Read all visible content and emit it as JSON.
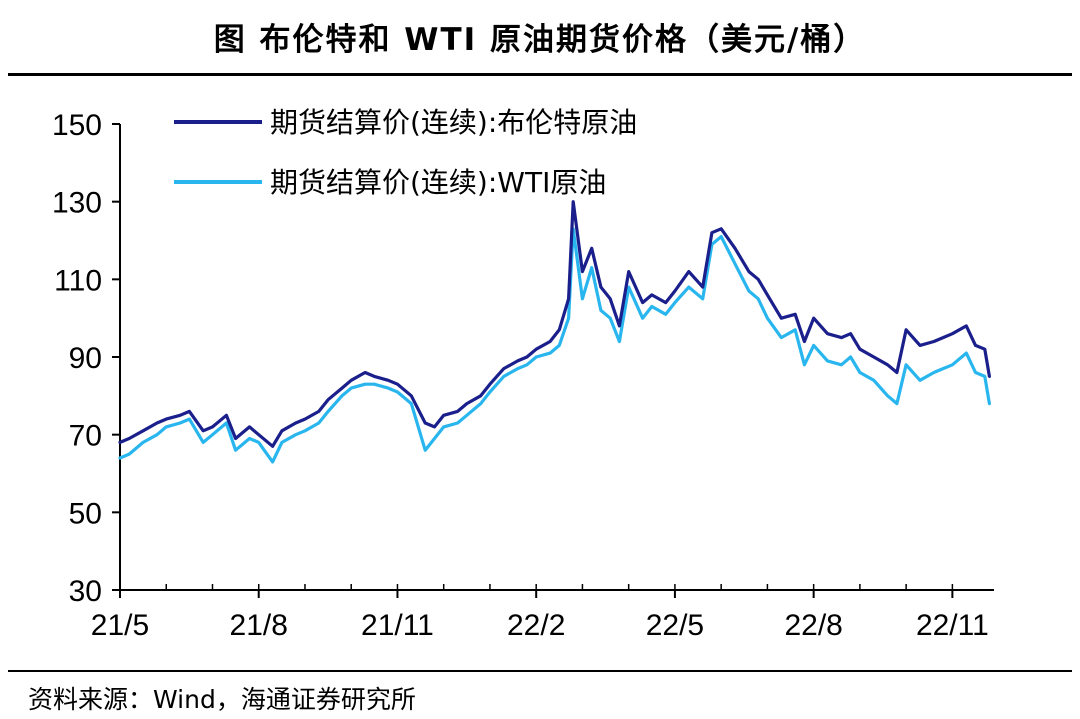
{
  "title": "图  布伦特和 WTI 原油期货价格（美元/桶）",
  "source": "资料来源：Wind，海通证券研究所",
  "chart_data": {
    "type": "line",
    "ylim": [
      30,
      150
    ],
    "yticks": [
      "150",
      "130",
      "110",
      "90",
      "70",
      "50",
      "30"
    ],
    "ytick_values": [
      150,
      130,
      110,
      90,
      70,
      50,
      30
    ],
    "xticks": [
      "21/5",
      "21/8",
      "21/11",
      "22/2",
      "22/5",
      "22/8",
      "22/11"
    ],
    "xtick_positions": [
      0,
      3,
      6,
      9,
      12,
      15,
      18
    ],
    "x_range": [
      0,
      18.9
    ],
    "legend_position": "top-left",
    "series": [
      {
        "name": "期货结算价(连续):布伦特原油",
        "color": "#1a1f8c",
        "x": [
          0,
          0.2,
          0.5,
          0.8,
          1.0,
          1.3,
          1.5,
          1.8,
          2.0,
          2.3,
          2.5,
          2.8,
          3.0,
          3.3,
          3.5,
          3.8,
          4.0,
          4.3,
          4.5,
          4.8,
          5.0,
          5.3,
          5.5,
          5.8,
          6.0,
          6.3,
          6.6,
          6.8,
          7.0,
          7.3,
          7.5,
          7.8,
          8.0,
          8.3,
          8.6,
          8.8,
          9.0,
          9.3,
          9.5,
          9.7,
          9.8,
          10.0,
          10.2,
          10.4,
          10.6,
          10.8,
          11.0,
          11.3,
          11.5,
          11.8,
          12.0,
          12.3,
          12.6,
          12.8,
          13.0,
          13.3,
          13.6,
          13.8,
          14.0,
          14.3,
          14.6,
          14.8,
          15.0,
          15.3,
          15.6,
          15.8,
          16.0,
          16.3,
          16.6,
          16.8,
          17.0,
          17.3,
          17.6,
          17.8,
          18.0,
          18.3,
          18.5,
          18.7,
          18.8
        ],
        "values": [
          68,
          69,
          71,
          73,
          74,
          75,
          76,
          71,
          72,
          75,
          69,
          72,
          70,
          67,
          71,
          73,
          74,
          76,
          79,
          82,
          84,
          86,
          85,
          84,
          83,
          80,
          73,
          72,
          75,
          76,
          78,
          80,
          83,
          87,
          89,
          90,
          92,
          94,
          97,
          105,
          130,
          112,
          118,
          108,
          105,
          98,
          112,
          104,
          106,
          104,
          107,
          112,
          108,
          122,
          123,
          118,
          112,
          110,
          106,
          100,
          101,
          94,
          100,
          96,
          95,
          96,
          92,
          90,
          88,
          86,
          97,
          93,
          94,
          95,
          96,
          98,
          93,
          92,
          85
        ]
      },
      {
        "name": "期货结算价(连续):WTI原油",
        "color": "#29b6ef",
        "x": [
          0,
          0.2,
          0.5,
          0.8,
          1.0,
          1.3,
          1.5,
          1.8,
          2.0,
          2.3,
          2.5,
          2.8,
          3.0,
          3.3,
          3.5,
          3.8,
          4.0,
          4.3,
          4.5,
          4.8,
          5.0,
          5.3,
          5.5,
          5.8,
          6.0,
          6.3,
          6.6,
          6.8,
          7.0,
          7.3,
          7.5,
          7.8,
          8.0,
          8.3,
          8.6,
          8.8,
          9.0,
          9.3,
          9.5,
          9.7,
          9.8,
          10.0,
          10.2,
          10.4,
          10.6,
          10.8,
          11.0,
          11.3,
          11.5,
          11.8,
          12.0,
          12.3,
          12.6,
          12.8,
          13.0,
          13.3,
          13.6,
          13.8,
          14.0,
          14.3,
          14.6,
          14.8,
          15.0,
          15.3,
          15.6,
          15.8,
          16.0,
          16.3,
          16.6,
          16.8,
          17.0,
          17.3,
          17.6,
          17.8,
          18.0,
          18.3,
          18.5,
          18.7,
          18.8
        ],
        "values": [
          64,
          65,
          68,
          70,
          72,
          73,
          74,
          68,
          70,
          73,
          66,
          69,
          68,
          63,
          68,
          70,
          71,
          73,
          76,
          80,
          82,
          83,
          83,
          82,
          81,
          78,
          66,
          69,
          72,
          73,
          75,
          78,
          81,
          85,
          87,
          88,
          90,
          91,
          93,
          100,
          123,
          105,
          113,
          102,
          100,
          94,
          108,
          100,
          103,
          101,
          104,
          108,
          105,
          119,
          121,
          114,
          107,
          105,
          100,
          95,
          97,
          88,
          93,
          89,
          88,
          90,
          86,
          84,
          80,
          78,
          88,
          84,
          86,
          87,
          88,
          91,
          86,
          85,
          78
        ]
      }
    ]
  }
}
